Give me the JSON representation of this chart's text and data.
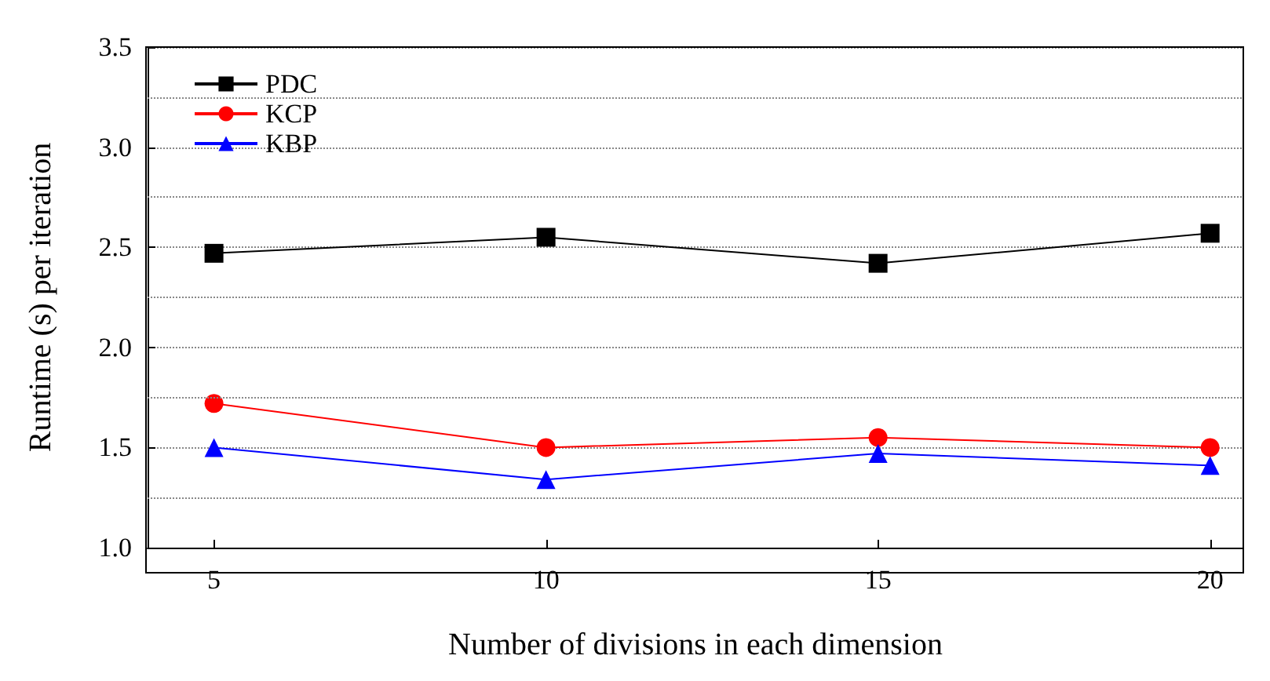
{
  "chart_data": {
    "type": "line",
    "xlabel": "Number of divisions in each dimension",
    "ylabel": "Runtime (s) per iteration",
    "x": [
      5,
      10,
      15,
      20
    ],
    "series": [
      {
        "name": "PDC",
        "color": "#000000",
        "marker": "square",
        "values": [
          2.47,
          2.55,
          2.42,
          2.57
        ]
      },
      {
        "name": "KCP",
        "color": "#ff0000",
        "marker": "circle",
        "values": [
          1.72,
          1.5,
          1.55,
          1.5
        ]
      },
      {
        "name": "KBP",
        "color": "#0000ff",
        "marker": "triangle",
        "values": [
          1.5,
          1.34,
          1.47,
          1.41
        ]
      }
    ],
    "xlim": [
      4,
      20.5
    ],
    "xticks": [
      5,
      10,
      15,
      20
    ],
    "ylim": [
      1.0,
      3.5
    ],
    "yticks": [
      {
        "value": 1.0,
        "label": "1.0"
      },
      {
        "value": 1.25,
        "label": null
      },
      {
        "value": 1.5,
        "label": "1.5"
      },
      {
        "value": 1.75,
        "label": null
      },
      {
        "value": 2.0,
        "label": "2.0"
      },
      {
        "value": 2.25,
        "label": null
      },
      {
        "value": 2.5,
        "label": "2.5"
      },
      {
        "value": 2.75,
        "label": null
      },
      {
        "value": 3.0,
        "label": "3.0"
      },
      {
        "value": 3.25,
        "label": null
      },
      {
        "value": 3.5,
        "label": "3.5"
      }
    ],
    "grid": "y",
    "legend": "top left",
    "line_style": "solid"
  }
}
